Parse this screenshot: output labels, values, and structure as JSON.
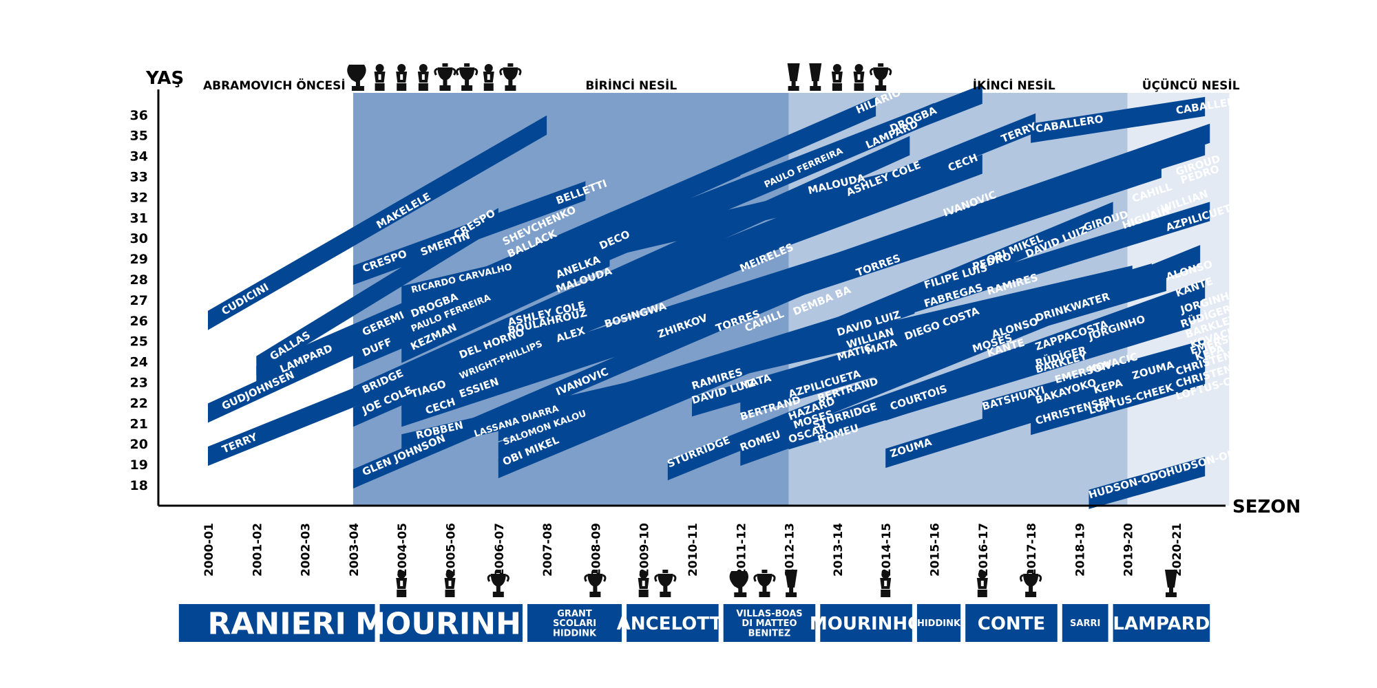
{
  "chart_data": {
    "type": "timeline",
    "axis": {
      "y_title": "YAŞ",
      "x_title": "SEZON",
      "y_ticks": [
        36,
        35,
        34,
        33,
        32,
        31,
        30,
        29,
        28,
        27,
        26,
        25,
        24,
        23,
        22,
        21,
        20,
        19,
        18
      ],
      "seasons": [
        "2000-01",
        "2001-02",
        "2002-03",
        "2003-04",
        "2004-05",
        "2005-06",
        "2006-07",
        "2007-08",
        "2008-09",
        "2009-10",
        "2010-11",
        "2011-12",
        "2012-13",
        "2013-14",
        "2014-15",
        "2015-16",
        "2016-17",
        "2017-18",
        "2018-19",
        "2019-20",
        "2020-21"
      ]
    },
    "eras": [
      {
        "label": "ABRAMOVICH ÖNCESİ",
        "start": 0,
        "end": 3,
        "color": "#ffffff"
      },
      {
        "label": "BİRİNCİ NESİL",
        "start": 3,
        "end": 12,
        "color": "#7d9fc9"
      },
      {
        "label": "İKİNCİ NESİL",
        "start": 12,
        "end": 19,
        "color": "#b3c6e0"
      },
      {
        "label": "ÜÇÜNCÜ NESİL",
        "start": 19,
        "end": 21.1,
        "color": "#e4eaf3"
      }
    ],
    "top_trophies": [
      {
        "season": 3.1,
        "type": "ucl"
      },
      {
        "season": 3.55,
        "type": "pl"
      },
      {
        "season": 4.0,
        "type": "pl"
      },
      {
        "season": 4.45,
        "type": "pl"
      },
      {
        "season": 4.9,
        "type": "cup"
      },
      {
        "season": 5.35,
        "type": "cup"
      },
      {
        "season": 5.8,
        "type": "pl"
      },
      {
        "season": 6.25,
        "type": "cup"
      },
      {
        "season": 12.1,
        "type": "el"
      },
      {
        "season": 12.55,
        "type": "el"
      },
      {
        "season": 13.0,
        "type": "pl"
      },
      {
        "season": 13.45,
        "type": "pl"
      },
      {
        "season": 13.9,
        "type": "cup"
      }
    ],
    "bottom_trophies": [
      {
        "season": 4,
        "type": "pl"
      },
      {
        "season": 5,
        "type": "pl"
      },
      {
        "season": 6,
        "type": "cup"
      },
      {
        "season": 8,
        "type": "cup"
      },
      {
        "season": 9,
        "type": "pl"
      },
      {
        "season": 9.45,
        "type": "cup"
      },
      {
        "season": 11,
        "type": "ucl"
      },
      {
        "season": 11.5,
        "type": "cup"
      },
      {
        "season": 12.05,
        "type": "el"
      },
      {
        "season": 14,
        "type": "pl"
      },
      {
        "season": 16,
        "type": "pl"
      },
      {
        "season": 17,
        "type": "cup"
      },
      {
        "season": 19.9,
        "type": "el"
      }
    ],
    "managers": [
      {
        "name": "RANIERI",
        "start": -0.6,
        "end": 3.45,
        "size": "big"
      },
      {
        "name": "MOURINHO",
        "start": 3.55,
        "end": 6.5,
        "size": "big"
      },
      {
        "name": "GRANT\nSCOLARI\nHIDDINK",
        "start": 6.6,
        "end": 8.55,
        "size": "small"
      },
      {
        "name": "ANCELOTTI",
        "start": 8.65,
        "end": 10.55,
        "size": "mid"
      },
      {
        "name": "VILLAS-BOAS\nDI MATTEO\nBENITEZ",
        "start": 10.65,
        "end": 12.55,
        "size": "small"
      },
      {
        "name": "MOURINHO",
        "start": 12.65,
        "end": 14.55,
        "size": "mid"
      },
      {
        "name": "HIDDINK",
        "start": 14.65,
        "end": 15.55,
        "size": "small"
      },
      {
        "name": "CONTE",
        "start": 15.65,
        "end": 17.55,
        "size": "mid"
      },
      {
        "name": "SARRI",
        "start": 17.65,
        "end": 18.6,
        "size": "small"
      },
      {
        "name": "LAMPARD",
        "start": 18.7,
        "end": 20.7,
        "size": "mid"
      }
    ],
    "players": [
      {
        "x1": 0,
        "y1": 26,
        "x2": 7,
        "y2": 35.5,
        "labels": [
          {
            "t": "CUDICINI",
            "x": 0.3,
            "y": 26.4
          },
          {
            "t": "MAKELELE",
            "x": 3.5,
            "y": 30.6
          }
        ]
      },
      {
        "x1": 1,
        "y1": 23.8,
        "x2": 6,
        "y2": 31,
        "labels": [
          {
            "t": "GALLAS",
            "x": 1.3,
            "y": 24.2
          },
          {
            "t": "CRESPO",
            "x": 5.1,
            "y": 30.1
          }
        ]
      },
      {
        "x1": 1,
        "y1": 23.3,
        "x2": 13.8,
        "y2": 36.4,
        "labels": [
          {
            "t": "LAMPARD",
            "x": 1.5,
            "y": 23.6
          },
          {
            "t": "HILARIO",
            "x": 13.4,
            "y": 36.2
          },
          {
            "t": "LAMPARD",
            "x": 13.6,
            "y": 34.5
          }
        ]
      },
      {
        "x1": 0,
        "y1": 21.5,
        "x2": 8.3,
        "y2": 30.5,
        "labels": [
          {
            "t": "GUDJOHNSEN",
            "x": 0.3,
            "y": 21.8
          },
          {
            "t": "SHEVCHENKO",
            "x": 6.1,
            "y": 29.8
          }
        ]
      },
      {
        "x1": 0,
        "y1": 19.4,
        "x2": 17.1,
        "y2": 35.6,
        "labels": [
          {
            "t": "TERRY",
            "x": 0.3,
            "y": 19.7
          },
          {
            "t": "TERRY",
            "x": 16.4,
            "y": 34.8
          }
        ]
      },
      {
        "x1": 3,
        "y1": 28.2,
        "x2": 7.8,
        "y2": 32.3,
        "labels": [
          {
            "t": "CRESPO",
            "x": 3.2,
            "y": 28.5
          },
          {
            "t": "SMERTIN",
            "x": 4.4,
            "y": 29.3
          },
          {
            "t": "BELLETTI",
            "x": 7.2,
            "y": 31.8
          }
        ]
      },
      {
        "x1": 3,
        "y1": 25,
        "x2": 11,
        "y2": 33.5,
        "labels": [
          {
            "t": "GEREMI",
            "x": 3.2,
            "y": 25.4
          },
          {
            "t": "BALLACK",
            "x": 6.2,
            "y": 29.2
          }
        ]
      },
      {
        "x1": 3,
        "y1": 24.1,
        "x2": 15,
        "y2": 36.1,
        "labels": [
          {
            "t": "DUFF",
            "x": 3.2,
            "y": 24.4
          },
          {
            "t": "DROGBA",
            "x": 14.1,
            "y": 35.3
          }
        ]
      },
      {
        "x1": 3,
        "y1": 22.3,
        "x2": 14.5,
        "y2": 34.5,
        "labels": [
          {
            "t": "BRIDGE",
            "x": 3.2,
            "y": 22.6
          },
          {
            "t": "PAULO FERREIRA",
            "x": 11.5,
            "y": 32.6
          }
        ]
      },
      {
        "x1": 3,
        "y1": 21.3,
        "x2": 11.7,
        "y2": 30.3,
        "labels": [
          {
            "t": "JOE COLE",
            "x": 3.2,
            "y": 21.6
          },
          {
            "t": "DECO",
            "x": 8.1,
            "y": 29.6
          }
        ]
      },
      {
        "x1": 3,
        "y1": 18.3,
        "x2": 13.3,
        "y2": 28.7,
        "labels": [
          {
            "t": "GLEN JOHNSON",
            "x": 3.2,
            "y": 18.6
          },
          {
            "t": "MEIRELES",
            "x": 11,
            "y": 28.5
          }
        ]
      },
      {
        "x1": 4,
        "y1": 27.2,
        "x2": 14.9,
        "y2": 33.2,
        "labels": [
          {
            "t": "RICARDO CARVALHO",
            "x": 4.2,
            "y": 27.5
          },
          {
            "t": "MALOUDA",
            "x": 12.4,
            "y": 32.3
          }
        ]
      },
      {
        "x1": 4,
        "y1": 26,
        "x2": 16,
        "y2": 37,
        "labels": [
          {
            "t": "DROGBA",
            "x": 4.2,
            "y": 26.3
          },
          {
            "t": "ASHLEY COLE",
            "x": 13.2,
            "y": 32.2
          },
          {
            "t": "CECH",
            "x": 15.3,
            "y": 33.4
          }
        ]
      },
      {
        "x1": 4,
        "y1": 25.3,
        "x2": 9,
        "y2": 30.1,
        "labels": [
          {
            "t": "PAULO FERREIRA",
            "x": 4.2,
            "y": 25.6
          }
        ]
      },
      {
        "x1": 4,
        "y1": 24.4,
        "x2": 8.3,
        "y2": 29.1,
        "labels": [
          {
            "t": "KEZMAN",
            "x": 4.2,
            "y": 24.7
          }
        ]
      },
      {
        "x1": 4,
        "y1": 22.1,
        "x2": 20.6,
        "y2": 34.5,
        "labels": [
          {
            "t": "TIAGO",
            "x": 4.2,
            "y": 22.4
          },
          {
            "t": "GIROUD",
            "x": 18.1,
            "y": 30.5
          },
          {
            "t": "GIROUD",
            "x": 20,
            "y": 33.2
          },
          {
            "t": "PEDRO",
            "x": 20.1,
            "y": 32.8
          }
        ]
      },
      {
        "x1": 4,
        "y1": 21.3,
        "x2": 19.7,
        "y2": 33.4,
        "labels": [
          {
            "t": "CECH",
            "x": 4.5,
            "y": 21.6
          },
          {
            "t": "CAHILL",
            "x": 19.1,
            "y": 31.9
          }
        ]
      },
      {
        "x1": 5,
        "y1": 24,
        "x2": 16,
        "y2": 33.6,
        "labels": [
          {
            "t": "DEL HORNO",
            "x": 5.2,
            "y": 24.3
          },
          {
            "t": "ANELKA",
            "x": 7.2,
            "y": 28.2
          },
          {
            "t": "IVANOVIC",
            "x": 15.2,
            "y": 31.2
          }
        ]
      },
      {
        "x1": 5,
        "y1": 23.2,
        "x2": 11.5,
        "y2": 29.4,
        "labels": [
          {
            "t": "WRIGHT-PHILLIPS",
            "x": 5.2,
            "y": 23.3
          }
        ]
      },
      {
        "x1": 5,
        "y1": 22.3,
        "x2": 20.7,
        "y2": 35.1,
        "labels": [
          {
            "t": "ESSIEN",
            "x": 5.2,
            "y": 22.4
          },
          {
            "t": "MALOUDA",
            "x": 7.2,
            "y": 27.5
          },
          {
            "t": "HIGUAÍN",
            "x": 18.9,
            "y": 30.6
          },
          {
            "t": "WILLIAN",
            "x": 19.7,
            "y": 31.4
          }
        ]
      },
      {
        "x1": 4,
        "y1": 20,
        "x2": 19.1,
        "y2": 28.2,
        "labels": [
          {
            "t": "ROBBEN",
            "x": 4.3,
            "y": 20.4
          },
          {
            "t": "ASHLEY COLE",
            "x": 6.2,
            "y": 25.9
          },
          {
            "t": "BOULAHROUZ",
            "x": 6.2,
            "y": 25.5
          }
        ]
      },
      {
        "x1": 6,
        "y1": 20.6,
        "x2": 20.7,
        "y2": 31.3,
        "labels": [
          {
            "t": "LASSANA DIARRA",
            "x": 5.5,
            "y": 20.5
          },
          {
            "t": "ALEX",
            "x": 7.2,
            "y": 25.1
          },
          {
            "t": "BOSINGWA",
            "x": 8.2,
            "y": 25.8
          },
          {
            "t": "AZPILICUETA",
            "x": 19.8,
            "y": 30.5
          }
        ]
      },
      {
        "x1": 6,
        "y1": 19.6,
        "x2": 14.6,
        "y2": 26.8,
        "labels": [
          {
            "t": "SALOMON KALOU",
            "x": 6.1,
            "y": 20.1
          },
          {
            "t": "ZHIRKOV",
            "x": 9.3,
            "y": 25.3
          },
          {
            "t": "TORRES",
            "x": 10.5,
            "y": 25.6
          },
          {
            "t": "TORRES",
            "x": 13.4,
            "y": 28.3
          }
        ]
      },
      {
        "x1": 6,
        "y1": 18.8,
        "x2": 18.7,
        "y2": 31.3,
        "labels": [
          {
            "t": "OBI MIKEL",
            "x": 6.1,
            "y": 19.1
          },
          {
            "t": "IVANOVIC",
            "x": 7.2,
            "y": 22.5
          },
          {
            "t": "OBI MIKEL",
            "x": 16.1,
            "y": 28.9
          },
          {
            "t": "DAVID LUIZ",
            "x": 16.9,
            "y": 29.2
          }
        ]
      },
      {
        "x1": 9.5,
        "y1": 18.7,
        "x2": 20.5,
        "y2": 29.2,
        "labels": [
          {
            "t": "STURRIDGE",
            "x": 9.5,
            "y": 19
          },
          {
            "t": "CAHILL",
            "x": 11.1,
            "y": 25.6
          },
          {
            "t": "DEMBA BA",
            "x": 12.1,
            "y": 26.4
          }
        ]
      },
      {
        "x1": 10,
        "y1": 21.8,
        "x2": 19.5,
        "y2": 28.3,
        "labels": [
          {
            "t": "RAMIRES",
            "x": 10,
            "y": 22.8
          },
          {
            "t": "DAVID LUIZ",
            "x": 10,
            "y": 22.1
          },
          {
            "t": "MATA",
            "x": 11,
            "y": 22.8
          },
          {
            "t": "FILIPE LUIS",
            "x": 14.8,
            "y": 27.7
          },
          {
            "t": "PEDRO",
            "x": 15.8,
            "y": 28.6
          },
          {
            "t": "FABREGAS",
            "x": 14.8,
            "y": 26.8
          },
          {
            "t": "RAMIRES",
            "x": 16.1,
            "y": 27.4
          }
        ]
      },
      {
        "x1": 11,
        "y1": 21.8,
        "x2": 19.8,
        "y2": 27.9,
        "labels": [
          {
            "t": "BERTRAND",
            "x": 11,
            "y": 21.3
          },
          {
            "t": "AZPILICUETA",
            "x": 12,
            "y": 22.4
          },
          {
            "t": "BERTRAND",
            "x": 12.6,
            "y": 22.2
          },
          {
            "t": "DAVID LUIZ",
            "x": 13,
            "y": 25.4
          },
          {
            "t": "WILLIAN",
            "x": 13.2,
            "y": 24.8
          },
          {
            "t": "MATIC",
            "x": 13,
            "y": 24.2
          },
          {
            "t": "MATA",
            "x": 13.6,
            "y": 24.5
          },
          {
            "t": "ALONSO",
            "x": 19.8,
            "y": 28.1
          }
        ]
      },
      {
        "x1": 11,
        "y1": 19.4,
        "x2": 20.6,
        "y2": 27.5,
        "labels": [
          {
            "t": "ROMEU",
            "x": 11,
            "y": 19.8
          },
          {
            "t": "HAZARD",
            "x": 12,
            "y": 21.3
          },
          {
            "t": "DIEGO COSTA",
            "x": 14.4,
            "y": 25.2
          },
          {
            "t": "KANTE",
            "x": 20,
            "y": 27.3
          }
        ]
      },
      {
        "x1": 12,
        "y1": 20.2,
        "x2": 20.3,
        "y2": 26.1,
        "labels": [
          {
            "t": "OSCAR",
            "x": 12,
            "y": 20.2
          },
          {
            "t": "MOSES",
            "x": 12.1,
            "y": 20.9
          },
          {
            "t": "STURRIDGE",
            "x": 12.5,
            "y": 20.9
          },
          {
            "t": "ROMEU",
            "x": 12.6,
            "y": 20.2
          },
          {
            "t": "MOSES",
            "x": 15.8,
            "y": 24.6
          },
          {
            "t": "ALONSO",
            "x": 16.2,
            "y": 25.3
          },
          {
            "t": "KANTE",
            "x": 16.1,
            "y": 24.4
          },
          {
            "t": "DRINKWATER",
            "x": 17.1,
            "y": 26.1
          },
          {
            "t": "JORGINHO",
            "x": 20.1,
            "y": 26.5
          }
        ]
      },
      {
        "x1": 14,
        "y1": 21.6,
        "x2": 20.5,
        "y2": 26.6,
        "labels": [
          {
            "t": "COURTOIS",
            "x": 14.1,
            "y": 21.8
          },
          {
            "t": "ZAPPACOSTA",
            "x": 17.1,
            "y": 24.7
          },
          {
            "t": "JORGINHO",
            "x": 18.2,
            "y": 25.2
          },
          {
            "t": "RÜDİGER",
            "x": 20.1,
            "y": 25.8
          },
          {
            "t": "BARKLEY",
            "x": 20.2,
            "y": 25.3
          },
          {
            "t": "KOVACIC",
            "x": 20.3,
            "y": 24.8
          },
          {
            "t": "EMERSON",
            "x": 20.3,
            "y": 24.5
          },
          {
            "t": "KEPA",
            "x": 20.4,
            "y": 24.2
          }
        ]
      },
      {
        "x1": 16,
        "y1": 21.6,
        "x2": 20.6,
        "y2": 24.6,
        "labels": [
          {
            "t": "BATSHUAYI",
            "x": 16,
            "y": 21.8
          },
          {
            "t": "RÜDİGER",
            "x": 17.1,
            "y": 23.9
          },
          {
            "t": "BARKLEY",
            "x": 17.1,
            "y": 23.6
          },
          {
            "t": "EMERSON",
            "x": 17.5,
            "y": 23.1
          },
          {
            "t": "KOVACIC",
            "x": 18.2,
            "y": 23.6
          },
          {
            "t": "KEPA",
            "x": 18.3,
            "y": 22.6
          },
          {
            "t": "ZOUMA",
            "x": 19.1,
            "y": 23.3
          }
        ]
      },
      {
        "x1": 14,
        "y1": 19.3,
        "x2": 20.6,
        "y2": 24.1,
        "labels": [
          {
            "t": "ZOUMA",
            "x": 14.1,
            "y": 19.5
          },
          {
            "t": "BAKAYOKO",
            "x": 17.1,
            "y": 22.1
          },
          {
            "t": "CHRISTENSEN",
            "x": 20,
            "y": 23.5
          }
        ]
      },
      {
        "x1": 17,
        "y1": 20.9,
        "x2": 20.6,
        "y2": 23.3,
        "labels": [
          {
            "t": "CHRISTENSEN",
            "x": 17.1,
            "y": 21.1
          },
          {
            "t": "LOFTUS-CHEEK",
            "x": 18.2,
            "y": 21.6
          },
          {
            "t": "CHRISTENSEN",
            "x": 20,
            "y": 22.9
          },
          {
            "t": "LOFTUS-CHEEK",
            "x": 20,
            "y": 22.3
          }
        ]
      },
      {
        "x1": 17,
        "y1": 35.1,
        "x2": 20.6,
        "y2": 36.4,
        "labels": [
          {
            "t": "CABALLERO",
            "x": 17.1,
            "y": 35.3
          },
          {
            "t": "CABALLERO",
            "x": 20,
            "y": 36.2
          }
        ]
      },
      {
        "x1": 18.2,
        "y1": 17.3,
        "x2": 20.6,
        "y2": 18.9,
        "labels": [
          {
            "t": "HUDSON-ODOI",
            "x": 18.2,
            "y": 17.5
          },
          {
            "t": "HUDSON-ODOI",
            "x": 19.8,
            "y": 18.6
          }
        ]
      }
    ]
  }
}
